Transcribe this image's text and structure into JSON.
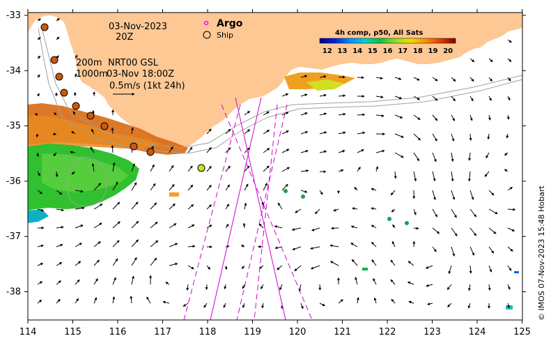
{
  "map": {
    "date": "03-Nov-2023",
    "time": "20Z",
    "legend": {
      "argo_label": "Argo",
      "ship_label": "Ship",
      "argo_color": "#ff00ff"
    },
    "contours_label": {
      "shallow": "200m",
      "deep": "1000m",
      "product": "NRT00 GSL",
      "product_time": "03-Nov 18:00Z"
    },
    "vector_scale": "0.5m/s (1kt 24h)",
    "colorbar": {
      "title": "4h comp, p50, All Sats",
      "tick_labels": [
        "12",
        "13",
        "14",
        "15",
        "16",
        "17",
        "18",
        "19",
        "20"
      ],
      "vmin": 11.5,
      "vmax": 20.5,
      "colors": [
        "#08007a",
        "#0020e0",
        "#0090ff",
        "#00d0d0",
        "#10c040",
        "#90e020",
        "#f0e000",
        "#ff9000",
        "#e04000",
        "#800000"
      ]
    },
    "x_ticks": [
      "114",
      "115",
      "116",
      "117",
      "118",
      "119",
      "120",
      "121",
      "122",
      "123",
      "124",
      "125"
    ],
    "y_ticks": [
      "-33",
      "-34",
      "-35",
      "-36",
      "-37",
      "-38"
    ],
    "credit": "© IMOS 07-Nov-2023 15:48 Hobart",
    "land_color": "#fdc894",
    "sst_units": "°C"
  }
}
